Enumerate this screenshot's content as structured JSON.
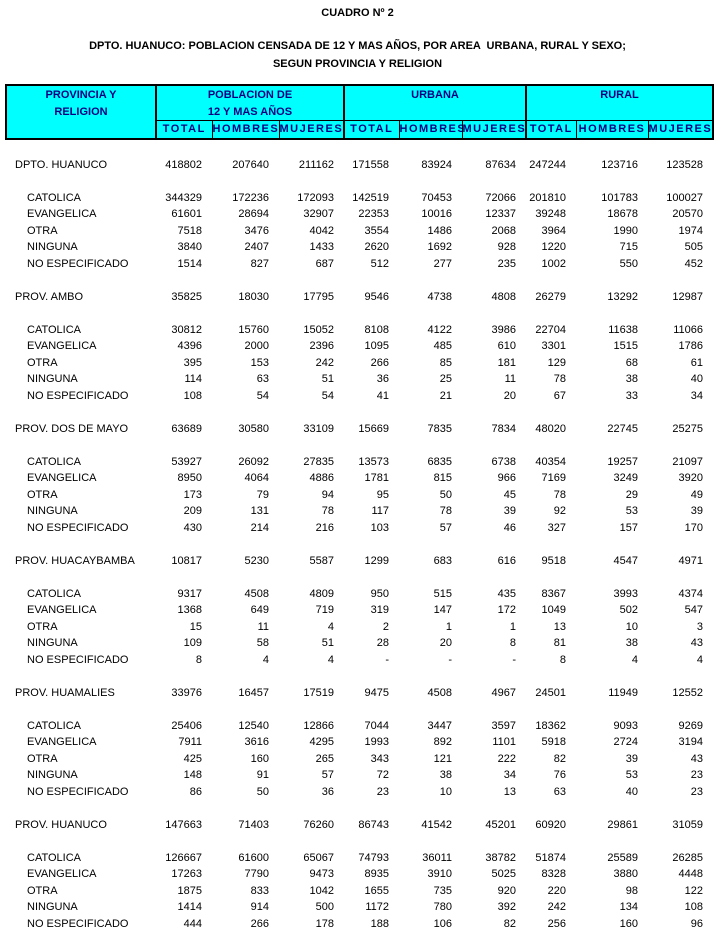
{
  "title": "CUADRO Nº 2",
  "subtitle_line1": "DPTO. HUANUCO: POBLACION CENSADA DE 12 Y MAS AÑOS, POR AREA  URBANA, RURAL Y SEXO;",
  "subtitle_line2": "SEGUN PROVINCIA Y RELIGION",
  "colors": {
    "header_bg": "#00ffff",
    "header_text": "#000080",
    "border": "#000000",
    "body_text": "#000000"
  },
  "header": {
    "province_line1": "PROVINCIA Y",
    "province_line2": "RELIGION",
    "group1_line1": "POBLACION DE",
    "group1_line2": "12 Y MAS AÑOS",
    "group2": "URBANA",
    "group3": "RURAL",
    "subcols": [
      "TOTAL",
      "HOMBRES",
      "MUJERES"
    ]
  },
  "sections": [
    {
      "name": "DPTO. HUANUCO",
      "values": [
        "418802",
        "207640",
        "211162",
        "171558",
        "83924",
        "87634",
        "247244",
        "123716",
        "123528"
      ],
      "rows": [
        {
          "label": "CATOLICA",
          "values": [
            "344329",
            "172236",
            "172093",
            "142519",
            "70453",
            "72066",
            "201810",
            "101783",
            "100027"
          ]
        },
        {
          "label": "EVANGELICA",
          "values": [
            "61601",
            "28694",
            "32907",
            "22353",
            "10016",
            "12337",
            "39248",
            "18678",
            "20570"
          ]
        },
        {
          "label": "OTRA",
          "values": [
            "7518",
            "3476",
            "4042",
            "3554",
            "1486",
            "2068",
            "3964",
            "1990",
            "1974"
          ]
        },
        {
          "label": "NINGUNA",
          "values": [
            "3840",
            "2407",
            "1433",
            "2620",
            "1692",
            "928",
            "1220",
            "715",
            "505"
          ]
        },
        {
          "label": "NO ESPECIFICADO",
          "values": [
            "1514",
            "827",
            "687",
            "512",
            "277",
            "235",
            "1002",
            "550",
            "452"
          ]
        }
      ]
    },
    {
      "name": "PROV. AMBO",
      "values": [
        "35825",
        "18030",
        "17795",
        "9546",
        "4738",
        "4808",
        "26279",
        "13292",
        "12987"
      ],
      "rows": [
        {
          "label": "CATOLICA",
          "values": [
            "30812",
            "15760",
            "15052",
            "8108",
            "4122",
            "3986",
            "22704",
            "11638",
            "11066"
          ]
        },
        {
          "label": "EVANGELICA",
          "values": [
            "4396",
            "2000",
            "2396",
            "1095",
            "485",
            "610",
            "3301",
            "1515",
            "1786"
          ]
        },
        {
          "label": "OTRA",
          "values": [
            "395",
            "153",
            "242",
            "266",
            "85",
            "181",
            "129",
            "68",
            "61"
          ]
        },
        {
          "label": "NINGUNA",
          "values": [
            "114",
            "63",
            "51",
            "36",
            "25",
            "11",
            "78",
            "38",
            "40"
          ]
        },
        {
          "label": "NO ESPECIFICADO",
          "values": [
            "108",
            "54",
            "54",
            "41",
            "21",
            "20",
            "67",
            "33",
            "34"
          ]
        }
      ]
    },
    {
      "name": "PROV. DOS DE MAYO",
      "values": [
        "63689",
        "30580",
        "33109",
        "15669",
        "7835",
        "7834",
        "48020",
        "22745",
        "25275"
      ],
      "rows": [
        {
          "label": "CATOLICA",
          "values": [
            "53927",
            "26092",
            "27835",
            "13573",
            "6835",
            "6738",
            "40354",
            "19257",
            "21097"
          ]
        },
        {
          "label": "EVANGELICA",
          "values": [
            "8950",
            "4064",
            "4886",
            "1781",
            "815",
            "966",
            "7169",
            "3249",
            "3920"
          ]
        },
        {
          "label": "OTRA",
          "values": [
            "173",
            "79",
            "94",
            "95",
            "50",
            "45",
            "78",
            "29",
            "49"
          ]
        },
        {
          "label": "NINGUNA",
          "values": [
            "209",
            "131",
            "78",
            "117",
            "78",
            "39",
            "92",
            "53",
            "39"
          ]
        },
        {
          "label": "NO ESPECIFICADO",
          "values": [
            "430",
            "214",
            "216",
            "103",
            "57",
            "46",
            "327",
            "157",
            "170"
          ]
        }
      ]
    },
    {
      "name": "PROV. HUACAYBAMBA",
      "values": [
        "10817",
        "5230",
        "5587",
        "1299",
        "683",
        "616",
        "9518",
        "4547",
        "4971"
      ],
      "rows": [
        {
          "label": "CATOLICA",
          "values": [
            "9317",
            "4508",
            "4809",
            "950",
            "515",
            "435",
            "8367",
            "3993",
            "4374"
          ]
        },
        {
          "label": "EVANGELICA",
          "values": [
            "1368",
            "649",
            "719",
            "319",
            "147",
            "172",
            "1049",
            "502",
            "547"
          ]
        },
        {
          "label": "OTRA",
          "values": [
            "15",
            "11",
            "4",
            "2",
            "1",
            "1",
            "13",
            "10",
            "3"
          ]
        },
        {
          "label": "NINGUNA",
          "values": [
            "109",
            "58",
            "51",
            "28",
            "20",
            "8",
            "81",
            "38",
            "43"
          ]
        },
        {
          "label": "NO ESPECIFICADO",
          "values": [
            "8",
            "4",
            "4",
            "-",
            "-",
            "-",
            "8",
            "4",
            "4"
          ]
        }
      ]
    },
    {
      "name": "PROV. HUAMALIES",
      "values": [
        "33976",
        "16457",
        "17519",
        "9475",
        "4508",
        "4967",
        "24501",
        "11949",
        "12552"
      ],
      "rows": [
        {
          "label": "CATOLICA",
          "values": [
            "25406",
            "12540",
            "12866",
            "7044",
            "3447",
            "3597",
            "18362",
            "9093",
            "9269"
          ]
        },
        {
          "label": "EVANGELICA",
          "values": [
            "7911",
            "3616",
            "4295",
            "1993",
            "892",
            "1101",
            "5918",
            "2724",
            "3194"
          ]
        },
        {
          "label": "OTRA",
          "values": [
            "425",
            "160",
            "265",
            "343",
            "121",
            "222",
            "82",
            "39",
            "43"
          ]
        },
        {
          "label": "NINGUNA",
          "values": [
            "148",
            "91",
            "57",
            "72",
            "38",
            "34",
            "76",
            "53",
            "23"
          ]
        },
        {
          "label": "NO ESPECIFICADO",
          "values": [
            "86",
            "50",
            "36",
            "23",
            "10",
            "13",
            "63",
            "40",
            "23"
          ]
        }
      ]
    },
    {
      "name": "PROV. HUANUCO",
      "values": [
        "147663",
        "71403",
        "76260",
        "86743",
        "41542",
        "45201",
        "60920",
        "29861",
        "31059"
      ],
      "rows": [
        {
          "label": "CATOLICA",
          "values": [
            "126667",
            "61600",
            "65067",
            "74793",
            "36011",
            "38782",
            "51874",
            "25589",
            "26285"
          ]
        },
        {
          "label": "EVANGELICA",
          "values": [
            "17263",
            "7790",
            "9473",
            "8935",
            "3910",
            "5025",
            "8328",
            "3880",
            "4448"
          ]
        },
        {
          "label": "OTRA",
          "values": [
            "1875",
            "833",
            "1042",
            "1655",
            "735",
            "920",
            "220",
            "98",
            "122"
          ]
        },
        {
          "label": "NINGUNA",
          "values": [
            "1414",
            "914",
            "500",
            "1172",
            "780",
            "392",
            "242",
            "134",
            "108"
          ]
        },
        {
          "label": "NO ESPECIFICADO",
          "values": [
            "444",
            "266",
            "178",
            "188",
            "106",
            "82",
            "256",
            "160",
            "96"
          ]
        }
      ]
    }
  ]
}
